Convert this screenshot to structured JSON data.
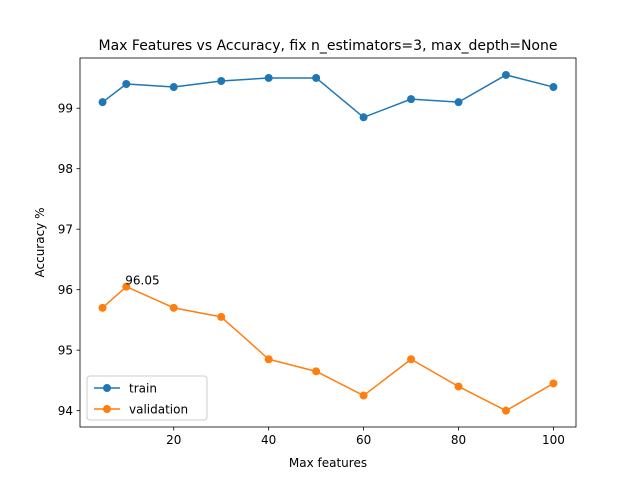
{
  "chart_data": {
    "type": "line",
    "title": "Max Features vs Accuracy, fix n_estimators=3, max_depth=None",
    "xlabel": "Max features",
    "ylabel": "Accuracy %",
    "xlim": [
      0.25,
      104.75
    ],
    "ylim": [
      93.73,
      99.83
    ],
    "xticks": [
      20,
      40,
      60,
      80,
      100
    ],
    "yticks": [
      94,
      95,
      96,
      97,
      98,
      99
    ],
    "grid": false,
    "legend_position": "lower-left",
    "x": [
      5,
      10,
      20,
      30,
      40,
      50,
      60,
      70,
      80,
      90,
      100
    ],
    "series": [
      {
        "name": "train",
        "color": "#1f77b4",
        "marker": "circle",
        "values": [
          99.1,
          99.4,
          99.35,
          99.45,
          99.5,
          99.5,
          98.85,
          99.15,
          99.1,
          99.55,
          99.35
        ]
      },
      {
        "name": "validation",
        "color": "#ff7f0e",
        "marker": "circle",
        "values": [
          95.7,
          96.05,
          95.7,
          95.55,
          94.85,
          94.65,
          94.25,
          94.85,
          94.4,
          94.0,
          94.45
        ]
      }
    ],
    "annotations": [
      {
        "text": "96.05",
        "x": 10,
        "y": 96.05
      }
    ]
  }
}
